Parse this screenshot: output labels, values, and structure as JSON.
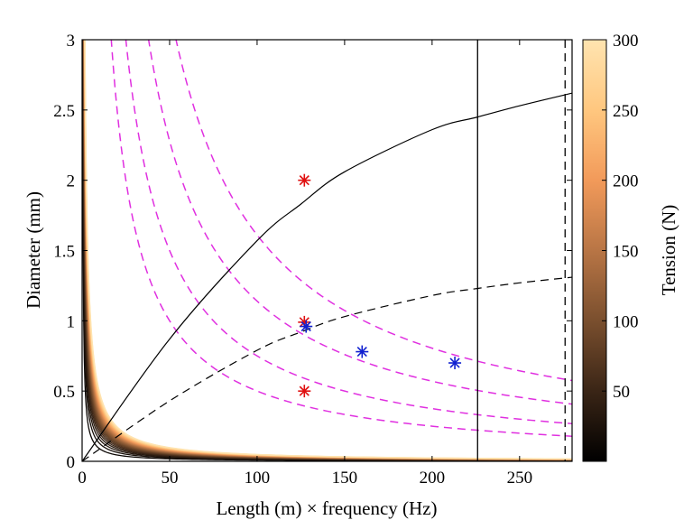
{
  "chart_data": {
    "type": "line",
    "title": "",
    "xlabel": "Length (m) × frequency (Hz)",
    "ylabel": "Diameter (mm)",
    "xlim": [
      0,
      280
    ],
    "ylim": [
      0,
      3
    ],
    "xticks": [
      0,
      50,
      100,
      150,
      200,
      250
    ],
    "xtick_labels": [
      "0",
      "50",
      "100",
      "150",
      "200",
      "250"
    ],
    "yticks": [
      0,
      0.5,
      1,
      1.5,
      2,
      2.5,
      3
    ],
    "ytick_labels": [
      "0",
      "0.5",
      "1",
      "1.5",
      "2",
      "2.5",
      "3"
    ],
    "grid": false,
    "colorbar": {
      "label": "Tension (N)",
      "min": 0,
      "max": 300,
      "ticks": [
        50,
        100,
        150,
        200,
        250,
        300
      ],
      "tick_labels": [
        "50",
        "100",
        "150",
        "200",
        "250",
        "300"
      ],
      "colormap": [
        "#000000",
        "#3a2516",
        "#7a4f2e",
        "#b87545",
        "#f29a5a",
        "#ffc77f",
        "#ffe4b0"
      ]
    },
    "tension_curve_levels": [
      10,
      20,
      30,
      40,
      50,
      60,
      70,
      80,
      90,
      100,
      110,
      120,
      130,
      140,
      150,
      160,
      170,
      180,
      190,
      200,
      210,
      220,
      230,
      240,
      250,
      260,
      270,
      280,
      290,
      300
    ],
    "tension_curve_model": "d = k * sqrt(T) / (L*f), k = 0.2835 mm·m·Hz per sqrt(N)",
    "dashed_curve_color": "#e030e0",
    "dashed_curve_constants": [
      50,
      75,
      114,
      161
    ],
    "rising_curves": [
      {
        "style": "solid",
        "x": [
          0,
          50,
          100,
          125,
          150,
          200,
          226,
          250,
          280
        ],
        "y": [
          0,
          0.87,
          1.57,
          1.83,
          2.06,
          2.36,
          2.45,
          2.53,
          2.62
        ]
      },
      {
        "style": "dashed",
        "x": [
          0,
          50,
          100,
          125,
          150,
          200,
          226,
          250,
          280
        ],
        "y": [
          0,
          0.43,
          0.79,
          0.92,
          1.03,
          1.18,
          1.23,
          1.27,
          1.31
        ]
      }
    ],
    "vertical_lines": [
      {
        "x": 226,
        "style": "solid"
      },
      {
        "x": 276,
        "style": "dashed"
      }
    ],
    "markers_red": [
      {
        "x": 127,
        "y": 2.0
      },
      {
        "x": 127,
        "y": 0.99
      },
      {
        "x": 127,
        "y": 0.5
      }
    ],
    "markers_blue": [
      {
        "x": 128,
        "y": 0.96
      },
      {
        "x": 160,
        "y": 0.78
      },
      {
        "x": 213,
        "y": 0.7
      }
    ],
    "marker_colors": {
      "red": "#e01010",
      "blue": "#1020d0"
    }
  }
}
